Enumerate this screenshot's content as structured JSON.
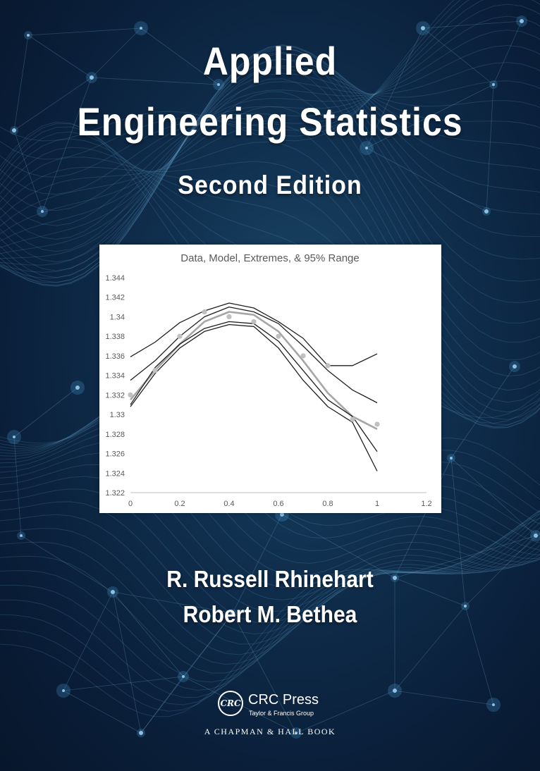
{
  "book": {
    "title_line1": "Applied",
    "title_line2": "Engineering Statistics",
    "edition": "Second Edition",
    "authors": [
      "R. Russell Rhinehart",
      "Robert M. Bethea"
    ],
    "publisher": {
      "logo_text": "CRC",
      "name": "CRC Press",
      "group": "Taylor & Francis Group",
      "imprint": "A CHAPMAN & HALL BOOK"
    }
  },
  "colors": {
    "background": "#0b2340",
    "title_text": "#ffffff",
    "curve_dark": "#1f1f1f",
    "curve_model": "#a6a6a6",
    "data_points": "#c0c0c0"
  },
  "chart_data": {
    "type": "line",
    "title": "Data, Model, Extremes, & 95% Range",
    "xlim": [
      0,
      1.2
    ],
    "ylim": [
      1.322,
      1.344
    ],
    "x_ticks": [
      "0",
      "0.2",
      "0.4",
      "0.6",
      "0.8",
      "1",
      "1.2"
    ],
    "y_ticks": [
      "1.344",
      "1.342",
      "1.34",
      "1.338",
      "1.336",
      "1.334",
      "1.332",
      "1.33",
      "1.328",
      "1.326",
      "1.324",
      "1.322"
    ],
    "grid": false,
    "legend": "none",
    "data_points": {
      "x": [
        0,
        0.1,
        0.2,
        0.3,
        0.4,
        0.5,
        0.6,
        0.7,
        0.8,
        0.9,
        1.0
      ],
      "y": [
        1.332,
        1.3345,
        1.338,
        1.3405,
        1.34,
        1.3395,
        1.338,
        1.336,
        1.335,
        1.3295,
        1.329
      ]
    },
    "series": [
      {
        "role": "model",
        "x": [
          0,
          0.1,
          0.2,
          0.3,
          0.4,
          0.5,
          0.6,
          0.7,
          0.8,
          0.9,
          1.0
        ],
        "y": [
          1.3315,
          1.3345,
          1.3372,
          1.3395,
          1.3405,
          1.3402,
          1.3385,
          1.3355,
          1.3322,
          1.3298,
          1.3285
        ]
      },
      {
        "role": "extreme-upper",
        "x": [
          0,
          0.1,
          0.2,
          0.3,
          0.4,
          0.5,
          0.6,
          0.7,
          0.8,
          0.9,
          1.0
        ],
        "y": [
          1.3359,
          1.3374,
          1.3394,
          1.3406,
          1.3414,
          1.3409,
          1.3395,
          1.3378,
          1.335,
          1.335,
          1.3362
        ]
      },
      {
        "role": "extreme-lower",
        "x": [
          0,
          0.1,
          0.2,
          0.3,
          0.4,
          0.5,
          0.6,
          0.7,
          0.8,
          0.9,
          1.0
        ],
        "y": [
          1.3335,
          1.3355,
          1.338,
          1.34,
          1.341,
          1.3405,
          1.3393,
          1.337,
          1.3345,
          1.3325,
          1.3312
        ]
      },
      {
        "role": "range-upper",
        "x": [
          0,
          0.1,
          0.2,
          0.3,
          0.4,
          0.5,
          0.6,
          0.7,
          0.8,
          0.9,
          1.0
        ],
        "y": [
          1.331,
          1.3348,
          1.3372,
          1.3388,
          1.3395,
          1.3393,
          1.3375,
          1.3345,
          1.3315,
          1.3298,
          1.3262
        ]
      },
      {
        "role": "range-lower",
        "x": [
          0,
          0.1,
          0.2,
          0.3,
          0.4,
          0.5,
          0.6,
          0.7,
          0.8,
          0.9,
          1.0
        ],
        "y": [
          1.3308,
          1.3342,
          1.3368,
          1.3385,
          1.3392,
          1.339,
          1.3368,
          1.3335,
          1.3308,
          1.3292,
          1.3242
        ]
      }
    ]
  }
}
